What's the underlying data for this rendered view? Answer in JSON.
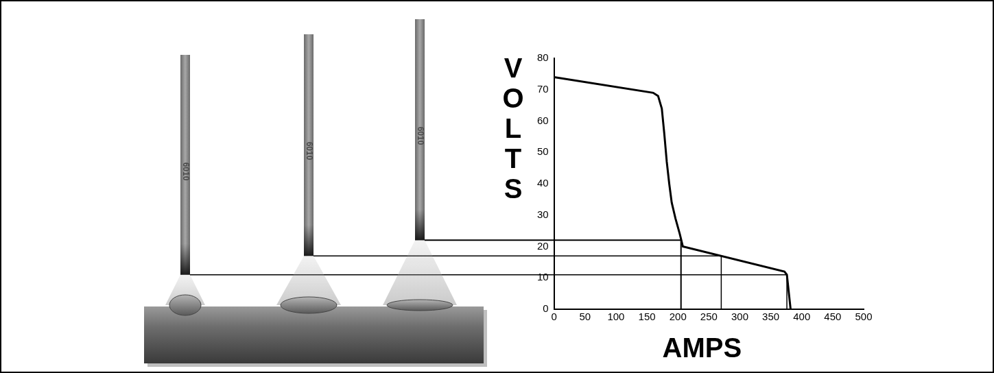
{
  "chart_data": {
    "type": "line",
    "x_label": "AMPS",
    "y_label": "VOLTS",
    "x": [
      0,
      160,
      168,
      174,
      178,
      182,
      186,
      190,
      196,
      203,
      208,
      372,
      376,
      382
    ],
    "values": [
      74,
      69,
      68,
      64,
      56,
      47,
      40,
      34,
      29,
      24,
      20,
      12,
      11,
      0
    ],
    "color": "#000000",
    "xlim": [
      0,
      500
    ],
    "xticks": [
      0,
      50,
      100,
      150,
      200,
      250,
      300,
      350,
      400,
      450,
      500
    ],
    "ylim": [
      0,
      80
    ],
    "yticks": [
      0,
      10,
      20,
      30,
      40,
      50,
      60,
      70,
      80
    ],
    "grid": false,
    "operating_points": [
      {
        "volts": 11,
        "amps": 376
      },
      {
        "volts": 17,
        "amps": 270
      },
      {
        "volts": 22,
        "amps": 205
      }
    ],
    "electrode_label": "6010"
  }
}
